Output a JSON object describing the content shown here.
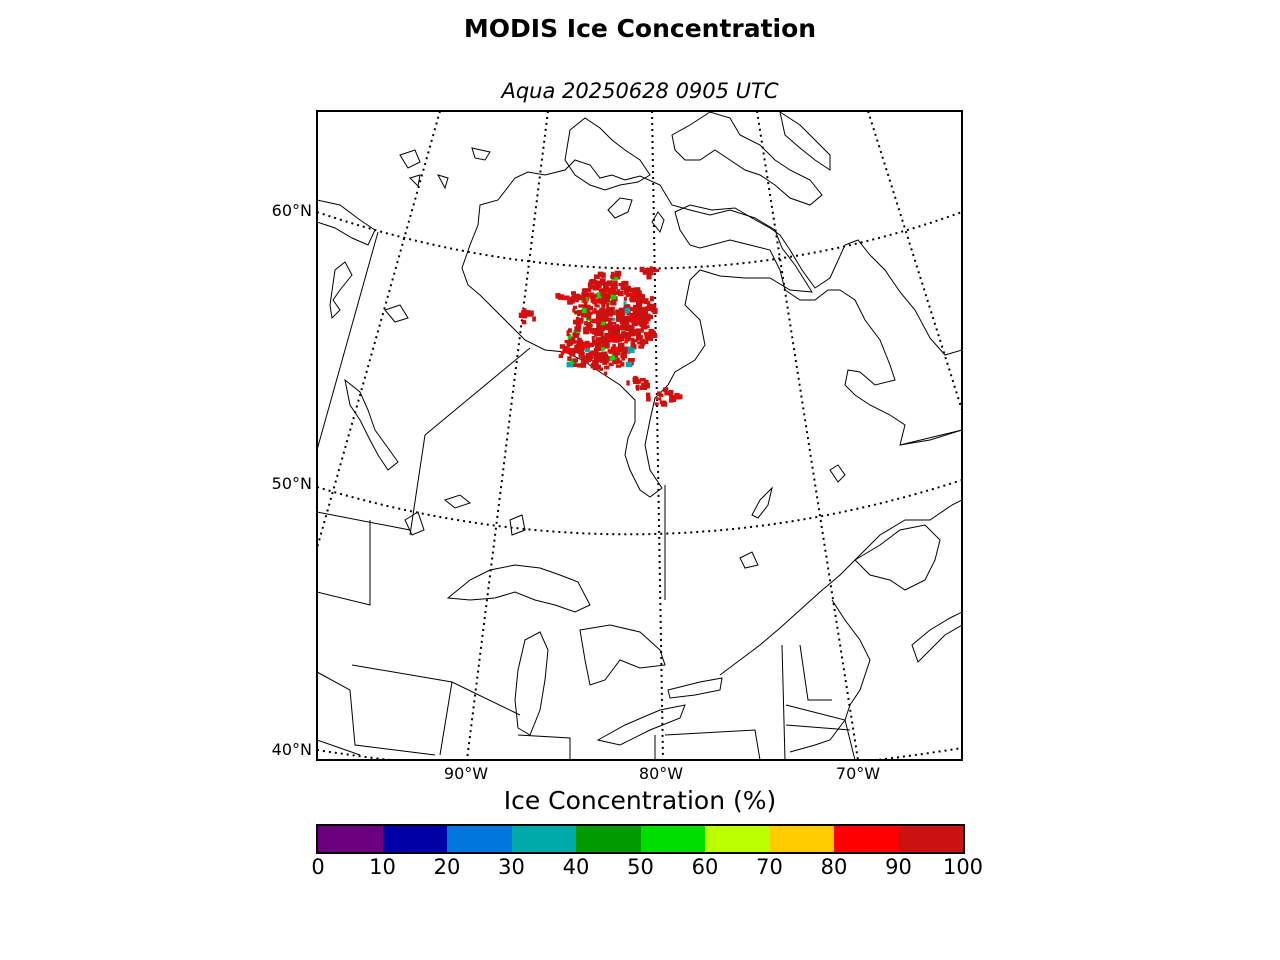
{
  "title": "MODIS Ice Concentration",
  "subtitle": "Aqua 20250628 0905 UTC",
  "map": {
    "projection": "conic",
    "latitude_labels": [
      "60°N",
      "50°N",
      "40°N"
    ],
    "longitude_labels": [
      "90°W",
      "80°W",
      "70°W"
    ],
    "graticule": "dotted",
    "land_color": "#ffffff",
    "coast_color": "#000000",
    "ice_observed_region": "Hudson Bay (southern/western part) and James Bay",
    "ice_dominant_color": "#cc1111"
  },
  "colorbar": {
    "label": "Ice Concentration (%)",
    "ticks": [
      "0",
      "10",
      "20",
      "30",
      "40",
      "50",
      "60",
      "70",
      "80",
      "90",
      "100"
    ],
    "colors": [
      "#6b007f",
      "#0000a6",
      "#0077dd",
      "#00aaaa",
      "#009900",
      "#00dd00",
      "#bbff00",
      "#ffcc00",
      "#ff0000",
      "#cc1111"
    ]
  }
}
